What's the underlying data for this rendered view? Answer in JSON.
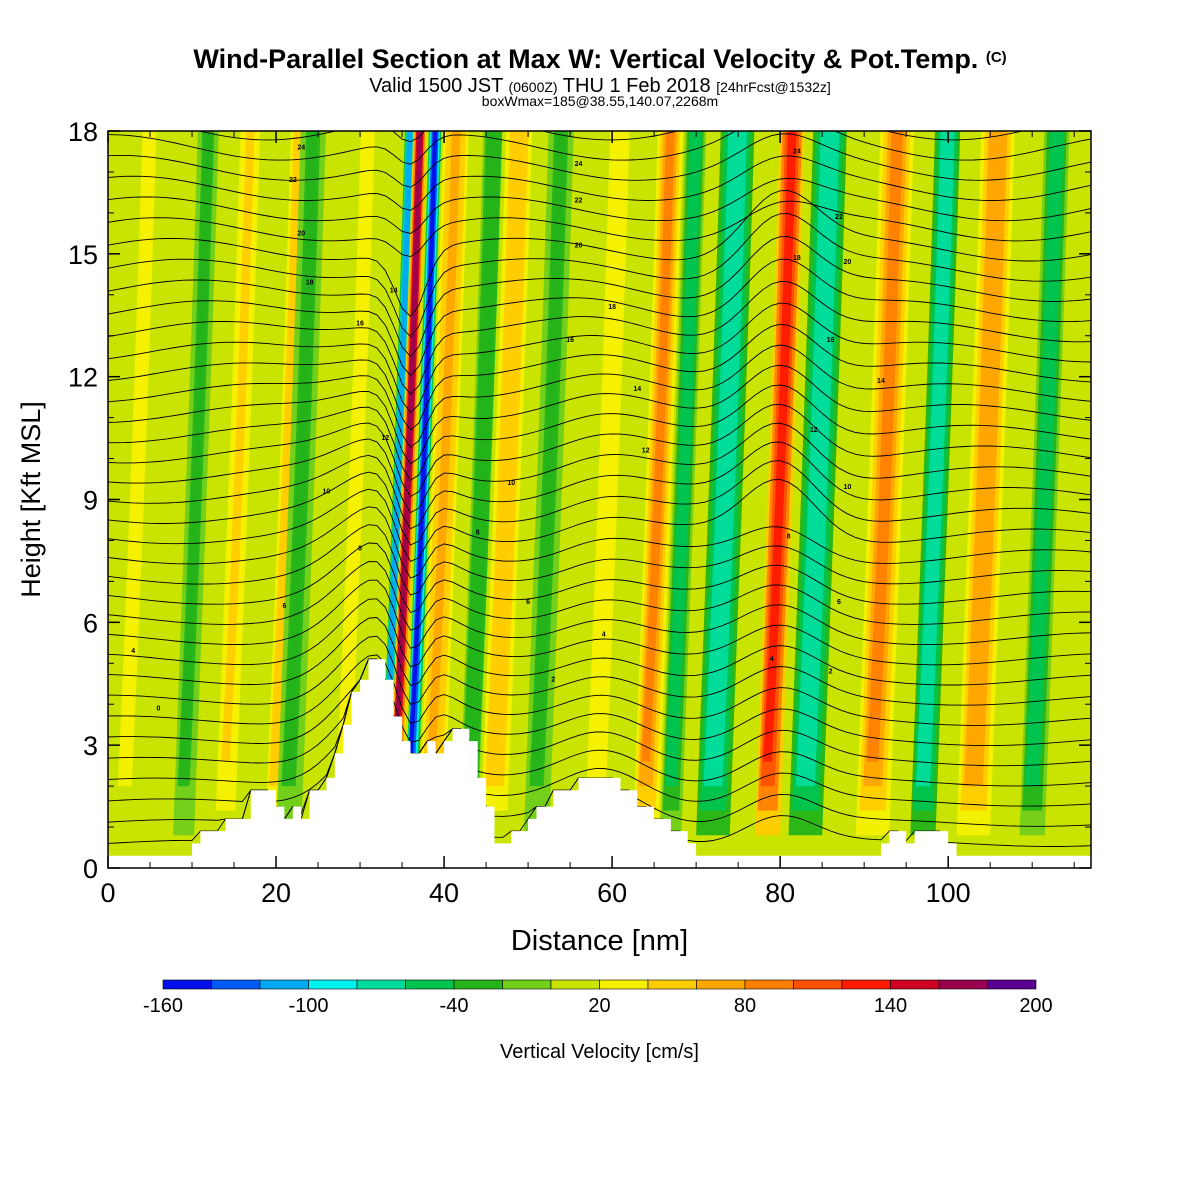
{
  "header": {
    "title_main": "Wind-Parallel Section at Max W: Vertical Velocity & Pot.Temp.",
    "title_unit": "(C)",
    "subtitle_a": "Valid 1500 JST",
    "subtitle_b": "(0600Z)",
    "subtitle_c": "THU 1 Feb 2018",
    "subtitle_d": "[24hrFcst@1532z]",
    "info_line": "boxWmax=185@38.55,140.07,2268m"
  },
  "chart_data": {
    "type": "heatmap",
    "xlabel": "Distance [nm]",
    "ylabel": "Height [Kft MSL]",
    "xlim": [
      0,
      117
    ],
    "ylim": [
      0,
      18
    ],
    "x_ticks": [
      0,
      20,
      40,
      60,
      80,
      100
    ],
    "y_ticks": [
      0,
      3,
      6,
      9,
      12,
      15,
      18
    ],
    "x_tick_labels": [
      "0",
      "20",
      "40",
      "60",
      "80",
      "100"
    ],
    "y_tick_labels": [
      "0",
      "3",
      "6",
      "9",
      "12",
      "15",
      "18"
    ],
    "colorbar": {
      "label": "Vertical Velocity [cm/s]",
      "levels": [
        -160,
        -140,
        -120,
        -100,
        -80,
        -60,
        -40,
        -20,
        0,
        20,
        40,
        60,
        80,
        100,
        120,
        140,
        160,
        180,
        200
      ],
      "tick_labels": [
        "-160",
        "-100",
        "-40",
        "20",
        "80",
        "140",
        "200"
      ],
      "tick_values": [
        -160,
        -100,
        -40,
        20,
        80,
        140,
        200
      ],
      "colors": [
        "#0010e8",
        "#005af5",
        "#00aaf2",
        "#00f2f0",
        "#00dc9a",
        "#00c450",
        "#24b41a",
        "#72cf1a",
        "#c8e400",
        "#f5f000",
        "#ffcc00",
        "#ffa600",
        "#ff8000",
        "#ff5000",
        "#ff1a00",
        "#d00020",
        "#9a0050",
        "#5a0090"
      ]
    },
    "vertical_velocity_bands": [
      {
        "x": 2,
        "width": 3,
        "value": 30
      },
      {
        "x": 9,
        "width": 2.5,
        "value": -30
      },
      {
        "x": 14,
        "width": 3,
        "value": 40
      },
      {
        "x": 20,
        "width": 3,
        "value": 55
      },
      {
        "x": 21.5,
        "width": 3,
        "value": -30
      },
      {
        "x": 28,
        "width": 3,
        "value": 30
      },
      {
        "x": 33,
        "width": 1.2,
        "value": -120
      },
      {
        "x": 34.2,
        "width": 1.6,
        "value": 165
      },
      {
        "x": 36,
        "width": 1.5,
        "value": -160
      },
      {
        "x": 38.5,
        "width": 3,
        "value": 70
      },
      {
        "x": 43,
        "width": 2.5,
        "value": -40
      },
      {
        "x": 46,
        "width": 4,
        "value": 55
      },
      {
        "x": 51,
        "width": 3,
        "value": -30
      },
      {
        "x": 58,
        "width": 3,
        "value": 35
      },
      {
        "x": 64,
        "width": 3,
        "value": 80
      },
      {
        "x": 67,
        "width": 2.5,
        "value": -50
      },
      {
        "x": 72,
        "width": 4,
        "value": -80
      },
      {
        "x": 78.5,
        "width": 3,
        "value": 135
      },
      {
        "x": 83,
        "width": 4,
        "value": -80
      },
      {
        "x": 91,
        "width": 4,
        "value": 90
      },
      {
        "x": 97,
        "width": 3,
        "value": -75
      },
      {
        "x": 103,
        "width": 4,
        "value": 75
      },
      {
        "x": 110,
        "width": 3,
        "value": -50
      }
    ],
    "potential_temperature_contours": {
      "interval_C": 1,
      "range_C": [
        0,
        25
      ],
      "labels_shown": [
        "0",
        "2",
        "4",
        "6",
        "8",
        "10",
        "12",
        "14",
        "16",
        "18",
        "20",
        "22",
        "24"
      ]
    },
    "terrain_profile_kft": [
      [
        0,
        0.3
      ],
      [
        10,
        0.3
      ],
      [
        10,
        0.6
      ],
      [
        11,
        0.6
      ],
      [
        11,
        0.9
      ],
      [
        14,
        0.9
      ],
      [
        14,
        1.2
      ],
      [
        17,
        1.2
      ],
      [
        17,
        1.9
      ],
      [
        20,
        1.9
      ],
      [
        20,
        1.5
      ],
      [
        21,
        1.5
      ],
      [
        21,
        1.2
      ],
      [
        22,
        1.2
      ],
      [
        22,
        1.5
      ],
      [
        23,
        1.5
      ],
      [
        23,
        1.2
      ],
      [
        24,
        1.2
      ],
      [
        24,
        1.9
      ],
      [
        26,
        1.9
      ],
      [
        26,
        2.2
      ],
      [
        27,
        2.2
      ],
      [
        27,
        2.8
      ],
      [
        28,
        2.8
      ],
      [
        28,
        3.5
      ],
      [
        29,
        3.5
      ],
      [
        29,
        4.3
      ],
      [
        30,
        4.3
      ],
      [
        30,
        4.6
      ],
      [
        31,
        4.6
      ],
      [
        31,
        5.1
      ],
      [
        33,
        5.1
      ],
      [
        33,
        4.6
      ],
      [
        34,
        4.6
      ],
      [
        34,
        3.7
      ],
      [
        35,
        3.7
      ],
      [
        35,
        3.1
      ],
      [
        36,
        3.1
      ],
      [
        36,
        2.8
      ],
      [
        38,
        2.8
      ],
      [
        38,
        3.1
      ],
      [
        39,
        3.1
      ],
      [
        39,
        2.8
      ],
      [
        40,
        2.8
      ],
      [
        40,
        3.1
      ],
      [
        41,
        3.1
      ],
      [
        41,
        3.4
      ],
      [
        43,
        3.4
      ],
      [
        43,
        3.1
      ],
      [
        44,
        3.1
      ],
      [
        44,
        2.2
      ],
      [
        45,
        2.2
      ],
      [
        45,
        1.5
      ],
      [
        46,
        1.5
      ],
      [
        46,
        0.6
      ],
      [
        48,
        0.6
      ],
      [
        48,
        0.9
      ],
      [
        50,
        0.9
      ],
      [
        50,
        1.2
      ],
      [
        51,
        1.2
      ],
      [
        51,
        1.5
      ],
      [
        53,
        1.5
      ],
      [
        53,
        1.9
      ],
      [
        56,
        1.9
      ],
      [
        56,
        2.2
      ],
      [
        61,
        2.2
      ],
      [
        61,
        1.9
      ],
      [
        63,
        1.9
      ],
      [
        63,
        1.5
      ],
      [
        65,
        1.5
      ],
      [
        65,
        1.2
      ],
      [
        67,
        1.2
      ],
      [
        67,
        0.9
      ],
      [
        69,
        0.9
      ],
      [
        69,
        0.6
      ],
      [
        70,
        0.6
      ],
      [
        70,
        0.3
      ],
      [
        92,
        0.3
      ],
      [
        92,
        0.6
      ],
      [
        93,
        0.6
      ],
      [
        93,
        0.9
      ],
      [
        95,
        0.9
      ],
      [
        95,
        0.6
      ],
      [
        96,
        0.6
      ],
      [
        96,
        0.9
      ],
      [
        100,
        0.9
      ],
      [
        100,
        0.6
      ],
      [
        101,
        0.6
      ],
      [
        101,
        0.3
      ],
      [
        117,
        0.3
      ]
    ]
  }
}
